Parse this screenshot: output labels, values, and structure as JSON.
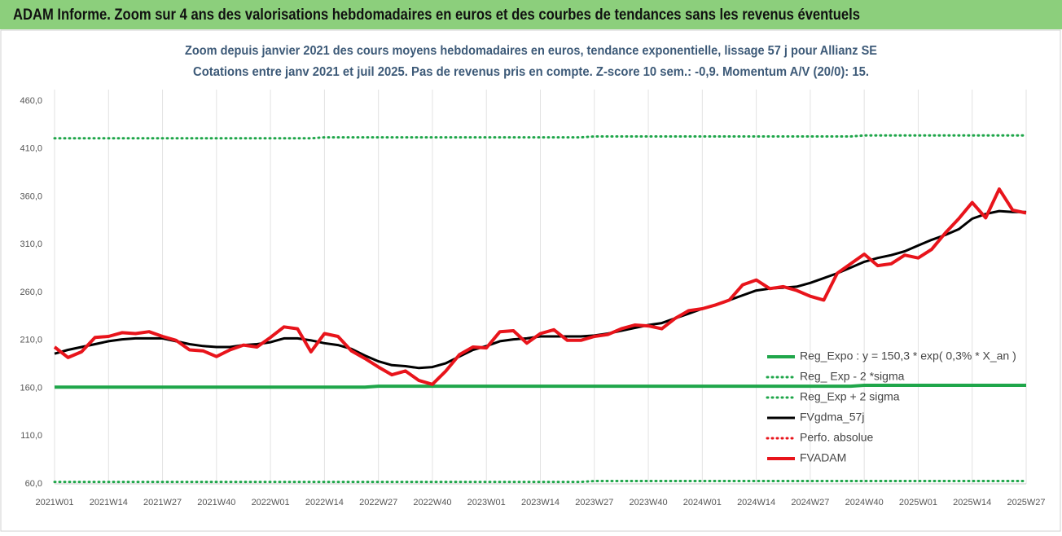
{
  "chart_data": {
    "type": "line",
    "title": "ADAM Informe. Zoom sur 4 ans des valorisations hebdomadaires en euros et des courbes de tendances sans les revenus éventuels",
    "subtitle": [
      "Zoom depuis janvier 2021 des cours moyens hebdomadaires en euros, tendance exponentielle, lissage 57 j pour Allianz SE",
      "Cotations entre janv 2021 et juil 2025. Pas de revenus pris en compte. Z-score 10 sem.: -0,9. Momentum A/V (20/0): 15."
    ],
    "categories": [
      "2021W01",
      null,
      null,
      null,
      "2021W14",
      null,
      null,
      null,
      "2021W27",
      null,
      null,
      null,
      "2021W40",
      null,
      null,
      null,
      "2022W01",
      null,
      null,
      null,
      "2022W14",
      null,
      null,
      null,
      "2022W27",
      null,
      null,
      null,
      "2022W40",
      null,
      null,
      null,
      "2023W01",
      null,
      null,
      null,
      "2023W14",
      null,
      null,
      null,
      "2023W27",
      null,
      null,
      null,
      "2023W40",
      null,
      null,
      null,
      "2024W01",
      null,
      null,
      null,
      "2024W14",
      null,
      null,
      null,
      "2024W27",
      null,
      null,
      null,
      "2024W40",
      null,
      null,
      null,
      "2025W01",
      null,
      null,
      null,
      "2025W14",
      null,
      null,
      null,
      "2025W27"
    ],
    "ylim": [
      60,
      460
    ],
    "yticks": [
      {
        "value": 60,
        "label": "60,0"
      },
      {
        "value": 110,
        "label": "110,0"
      },
      {
        "value": 160,
        "label": "160,0"
      },
      {
        "value": 210,
        "label": "210,0"
      },
      {
        "value": 260,
        "label": "260,0"
      },
      {
        "value": 310,
        "label": "310,0"
      },
      {
        "value": 360,
        "label": "360,0"
      },
      {
        "value": 410,
        "label": "410,0"
      },
      {
        "value": 460,
        "label": "460,0"
      }
    ],
    "grid": "x",
    "legend": "lower right",
    "series": [
      {
        "name": "Reg_Expo : y = 150,3 * exp( 0,3% *  X_an )",
        "color": "#1fa64a",
        "style": "solid",
        "width": 4,
        "values": [
          161,
          161,
          161,
          161,
          161,
          161,
          161,
          161,
          161,
          161,
          161,
          161,
          161,
          161,
          161,
          161,
          161,
          161,
          161,
          161,
          161,
          161,
          161,
          161,
          162,
          162,
          162,
          162,
          162,
          162,
          162,
          162,
          162,
          162,
          162,
          162,
          162,
          162,
          162,
          162,
          162,
          162,
          162,
          162,
          162,
          162,
          162,
          162,
          162,
          162,
          162,
          162,
          162,
          162,
          162,
          162,
          162,
          162,
          162,
          162,
          163,
          163,
          163,
          163,
          163,
          163,
          163,
          163,
          163,
          163,
          163,
          163,
          163
        ]
      },
      {
        "name": "Reg_ Exp - 2 *sigma",
        "color": "#1fa64a",
        "style": "dotted",
        "width": 3,
        "values": [
          62,
          62,
          62,
          62,
          62,
          62,
          62,
          62,
          62,
          62,
          62,
          62,
          62,
          62,
          62,
          62,
          62,
          62,
          62,
          62,
          62,
          62,
          62,
          62,
          62,
          62,
          62,
          62,
          62,
          62,
          62,
          62,
          62,
          62,
          62,
          62,
          62,
          62,
          62,
          62,
          63,
          63,
          63,
          63,
          63,
          63,
          63,
          63,
          63,
          63,
          63,
          63,
          63,
          63,
          63,
          63,
          63,
          63,
          63,
          63,
          63,
          63,
          63,
          63,
          63,
          63,
          63,
          63,
          63,
          63,
          63,
          63,
          63
        ]
      },
      {
        "name": "Reg_Exp + 2 sigma",
        "color": "#1fa64a",
        "style": "dotted",
        "width": 3,
        "values": [
          421,
          421,
          421,
          421,
          421,
          421,
          421,
          421,
          421,
          421,
          421,
          421,
          421,
          421,
          421,
          421,
          421,
          421,
          421,
          421,
          422,
          422,
          422,
          422,
          422,
          422,
          422,
          422,
          422,
          422,
          422,
          422,
          422,
          422,
          422,
          422,
          422,
          422,
          422,
          422,
          423,
          423,
          423,
          423,
          423,
          423,
          423,
          423,
          423,
          423,
          423,
          423,
          423,
          423,
          423,
          423,
          423,
          423,
          423,
          423,
          424,
          424,
          424,
          424,
          424,
          424,
          424,
          424,
          424,
          424,
          424,
          424,
          424
        ]
      },
      {
        "name": "FVgdma_57j",
        "color": "#000000",
        "style": "solid",
        "width": 3,
        "values": [
          196,
          200,
          203,
          206,
          209,
          211,
          212,
          212,
          212,
          209,
          206,
          204,
          203,
          203,
          205,
          206,
          208,
          212,
          212,
          210,
          207,
          205,
          201,
          194,
          188,
          184,
          183,
          181,
          182,
          186,
          193,
          200,
          204,
          209,
          211,
          212,
          214,
          214,
          214,
          214,
          215,
          217,
          220,
          223,
          226,
          228,
          233,
          238,
          243,
          247,
          252,
          257,
          262,
          264,
          265,
          266,
          270,
          275,
          280,
          286,
          292,
          296,
          299,
          303,
          309,
          315,
          320,
          326,
          337,
          342,
          345,
          344,
          344
        ]
      },
      {
        "name": "Perfo. absolue",
        "color": "#e8141b",
        "style": "dotted",
        "width": 3,
        "values": [
          null,
          null,
          null,
          null,
          null,
          null,
          null,
          null,
          null,
          null,
          null,
          null,
          null,
          null,
          null,
          null,
          null,
          null,
          null,
          null,
          null,
          null,
          null,
          null,
          null,
          null,
          null,
          null,
          null,
          null,
          null,
          null,
          null,
          null,
          null,
          null,
          null,
          null,
          null,
          null,
          null,
          null,
          null,
          null,
          null,
          null,
          null,
          null,
          null,
          null,
          null,
          null,
          null,
          null,
          null,
          null,
          null,
          null,
          null,
          null,
          null,
          null,
          null,
          null,
          null,
          null,
          null,
          null,
          null,
          null,
          null,
          null,
          null
        ]
      },
      {
        "name": "FVADAM",
        "color": "#e8141b",
        "style": "solid",
        "width": 4,
        "values": [
          203,
          192,
          198,
          213,
          214,
          218,
          217,
          219,
          214,
          210,
          200,
          199,
          193,
          200,
          205,
          203,
          213,
          224,
          222,
          198,
          217,
          214,
          199,
          191,
          182,
          174,
          178,
          168,
          164,
          178,
          195,
          203,
          202,
          219,
          220,
          207,
          217,
          221,
          210,
          210,
          214,
          216,
          222,
          226,
          225,
          222,
          233,
          241,
          243,
          247,
          252,
          268,
          273,
          264,
          266,
          262,
          256,
          252,
          280,
          290,
          300,
          288,
          290,
          299,
          296,
          305,
          322,
          337,
          354,
          338,
          368,
          346,
          343
        ]
      }
    ]
  }
}
